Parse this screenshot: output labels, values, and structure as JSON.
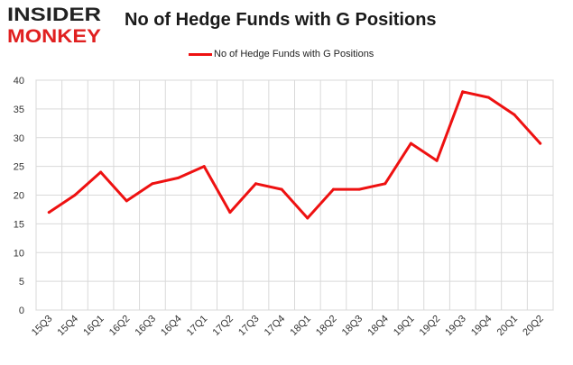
{
  "logo": {
    "line1": "INSIDER",
    "line2": "MONKEY"
  },
  "title": "No of Hedge Funds with G Positions",
  "legend": {
    "label": "No of Hedge Funds with G Positions",
    "color": "#ee1111"
  },
  "chart_data": {
    "type": "line",
    "title": "No of Hedge Funds with G Positions",
    "xlabel": "",
    "ylabel": "",
    "categories": [
      "15Q3",
      "15Q4",
      "16Q1",
      "16Q2",
      "16Q3",
      "16Q4",
      "17Q1",
      "17Q2",
      "17Q3",
      "17Q4",
      "18Q1",
      "18Q2",
      "18Q3",
      "18Q4",
      "19Q1",
      "19Q2",
      "19Q3",
      "19Q4",
      "20Q1",
      "20Q2"
    ],
    "series": [
      {
        "name": "No of Hedge Funds with G Positions",
        "color": "#ee1111",
        "values": [
          17,
          20,
          24,
          19,
          22,
          23,
          25,
          17,
          22,
          21,
          16,
          21,
          21,
          22,
          29,
          26,
          38,
          37,
          34,
          29
        ]
      }
    ],
    "ylim": [
      0,
      40
    ],
    "yticks": [
      0,
      5,
      10,
      15,
      20,
      25,
      30,
      35,
      40
    ],
    "grid": true,
    "legend_position": "top-center"
  }
}
